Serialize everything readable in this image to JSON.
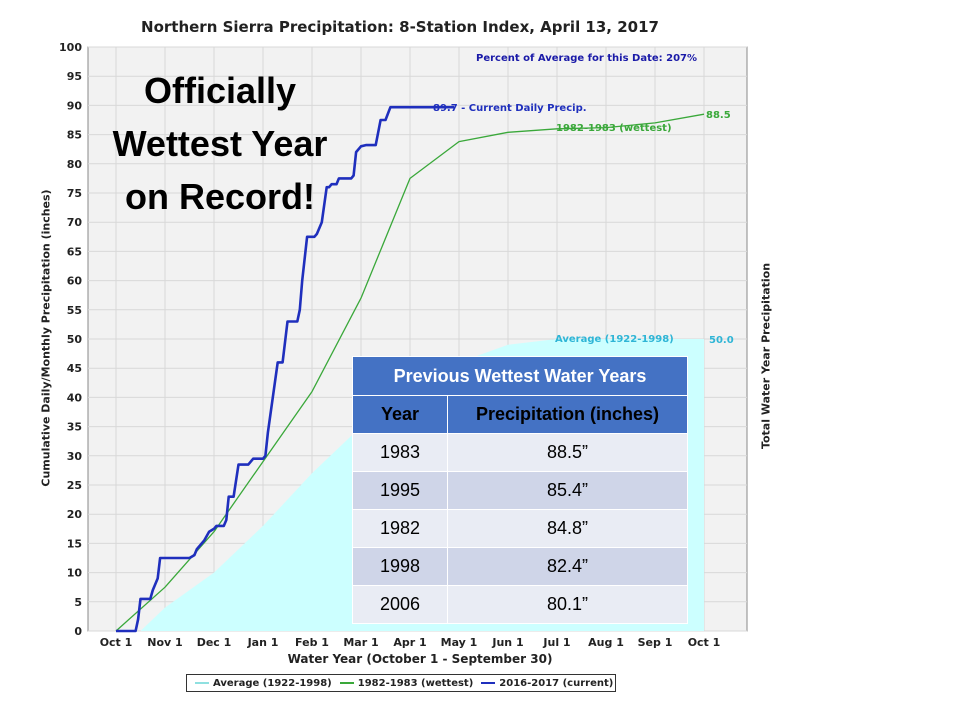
{
  "chart_data": {
    "type": "line",
    "title": "Northern Sierra Precipitation: 8-Station Index, April 13, 2017",
    "xlabel": "Water Year (October 1 - September 30)",
    "ylabel": "Cumulative Daily/Monthly Precipitation (inches)",
    "y2label": "Total Water Year Precipitation",
    "ylim": [
      0,
      100
    ],
    "yticks": [
      0,
      5,
      10,
      15,
      20,
      25,
      30,
      35,
      40,
      45,
      50,
      55,
      60,
      65,
      70,
      75,
      80,
      85,
      90,
      95,
      100
    ],
    "xlim": [
      0,
      13
    ],
    "xticks": [
      "Oct 1",
      "Nov 1",
      "Dec 1",
      "Jan 1",
      "Feb 1",
      "Mar 1",
      "Apr 1",
      "May 1",
      "Jun 1",
      "Jul 1",
      "Aug 1",
      "Sep 1",
      "Oct 1"
    ],
    "grid": true,
    "legend_position": "bottom",
    "series": [
      {
        "name": "Average (1922-1998)",
        "style": "area",
        "color": "#ccffff",
        "x": [
          0.5,
          1,
          2,
          3,
          4,
          5,
          6,
          7,
          8,
          9,
          10,
          11,
          12
        ],
        "y": [
          0,
          4,
          10,
          18,
          27,
          35,
          42,
          46,
          49,
          50,
          50,
          50,
          50
        ],
        "end_value": "50.0",
        "label": "Average (1922-1998)"
      },
      {
        "name": "1982-1983 (wettest)",
        "style": "line",
        "color": "#3aa83a",
        "x": [
          0,
          1,
          2,
          3,
          4,
          5,
          6,
          7,
          8,
          9,
          10,
          11,
          12
        ],
        "y": [
          0,
          7.5,
          17,
          29,
          41,
          57,
          77.5,
          83.8,
          85.4,
          86.0,
          86.2,
          87,
          88.5
        ],
        "end_value": "88.5",
        "label": "1982-1983 (wettest)"
      },
      {
        "name": "2016-2017 (current)",
        "style": "line",
        "color": "#1f2fbd",
        "x": [
          0,
          0.4,
          0.45,
          0.5,
          0.7,
          0.75,
          0.85,
          0.9,
          0.95,
          1.0,
          1.5,
          1.6,
          1.65,
          1.8,
          1.9,
          2.0,
          2.05,
          2.1,
          2.2,
          2.25,
          2.3,
          2.4,
          2.5,
          2.6,
          2.7,
          2.8,
          2.9,
          3.0,
          3.05,
          3.1,
          3.2,
          3.3,
          3.35,
          3.4,
          3.5,
          3.7,
          3.75,
          3.8,
          3.9,
          4.0,
          4.05,
          4.1,
          4.2,
          4.3,
          4.35,
          4.4,
          4.5,
          4.55,
          4.6,
          4.7,
          4.8,
          4.85,
          4.9,
          5.0,
          5.1,
          5.3,
          5.4,
          5.5,
          5.6,
          5.9,
          6.0,
          6.2,
          6.25,
          6.3,
          6.45,
          6.5,
          6.6,
          6.65,
          6.7,
          6.8,
          6.85,
          6.9
        ],
        "y": [
          0,
          0,
          2,
          5.5,
          5.5,
          7,
          9,
          12.5,
          12.5,
          12.5,
          12.5,
          13,
          14,
          15.5,
          17,
          17.5,
          18,
          18,
          18,
          19,
          23,
          23,
          28.5,
          28.5,
          28.5,
          29.5,
          29.5,
          29.5,
          30,
          34,
          40,
          46,
          46,
          46,
          53,
          53,
          55,
          60,
          67.5,
          67.5,
          67.5,
          68,
          70,
          76,
          76,
          76.5,
          76.5,
          77.5,
          77.5,
          77.5,
          77.5,
          78,
          82,
          83,
          83.2,
          83.2,
          87.5,
          87.5,
          89.7,
          89.7,
          89.7,
          89.7,
          89.7,
          89.7,
          89.7,
          89.7,
          89.7,
          89.7,
          89.7,
          89.7,
          89.7,
          89.7
        ],
        "end_value": "89.7",
        "label": "89.7 -  Current Daily Precip."
      }
    ],
    "annotations": {
      "percent_of_average": "Percent of Average for this Date: 207%",
      "wettest_label": "1982-1983 (wettest)",
      "average_label": "Average (1922-1998)"
    }
  },
  "headline": [
    "Officially",
    "Wettest Year",
    "on Record!"
  ],
  "table": {
    "caption": "Previous Wettest Water Years",
    "headers": [
      "Year",
      "Precipitation (inches)"
    ],
    "rows": [
      [
        "1983",
        "88.5”"
      ],
      [
        "1995",
        "85.4”"
      ],
      [
        "1982",
        "84.8”"
      ],
      [
        "1998",
        "82.4”"
      ],
      [
        "2006",
        "80.1”"
      ]
    ]
  },
  "legend": [
    {
      "label": "Average (1922-1998)",
      "color": "#ccffff"
    },
    {
      "label": "1982-1983 (wettest)",
      "color": "#3aa83a"
    },
    {
      "label": "2016-2017 (current)",
      "color": "#1f2fbd"
    }
  ]
}
